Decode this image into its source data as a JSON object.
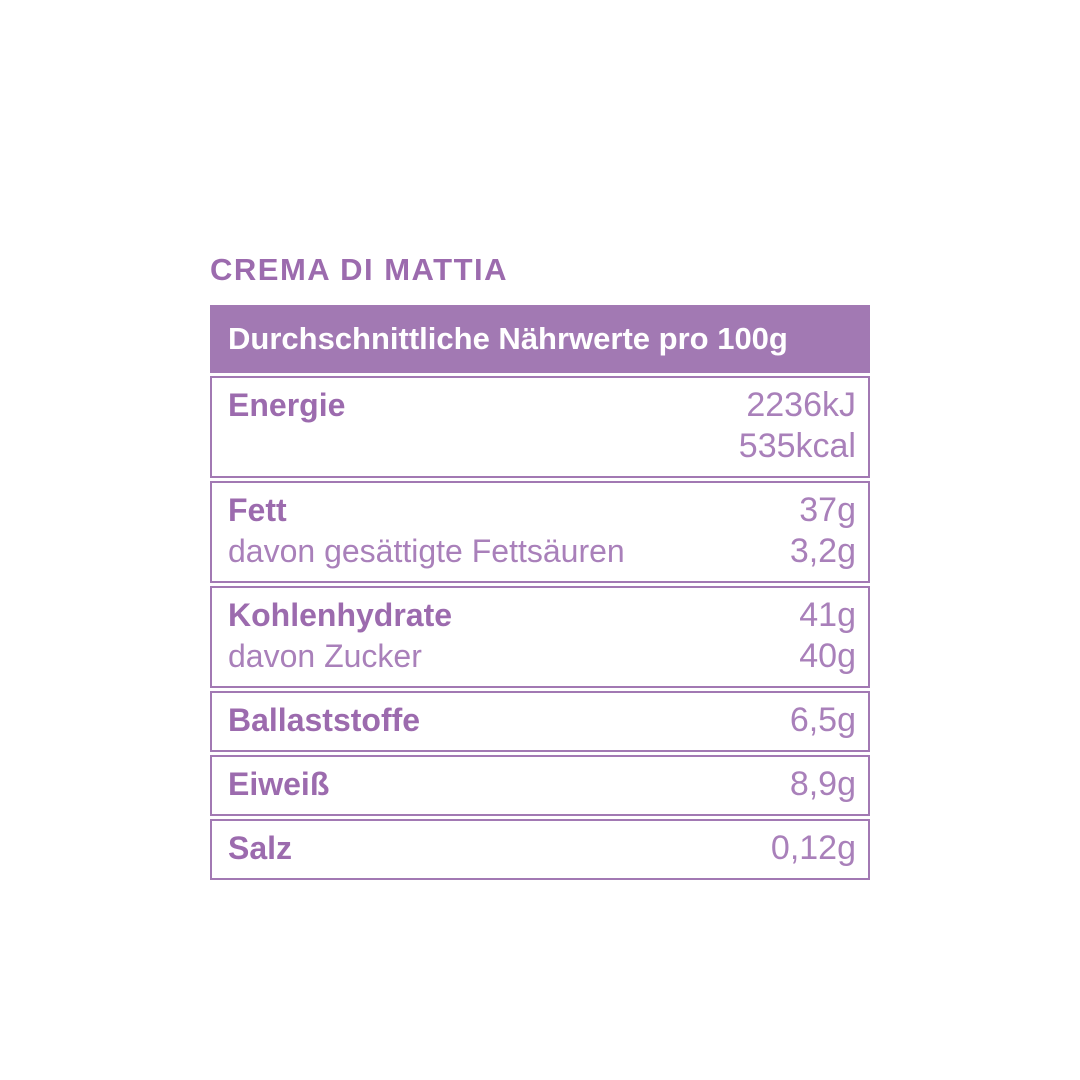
{
  "colors": {
    "accent_purple": "#a279b3",
    "text_bold_purple": "#9c6bae",
    "text_light_purple": "#a980ba",
    "header_text": "#ffffff",
    "background": "#ffffff"
  },
  "title": "CREMA DI MATTIA",
  "table": {
    "header": "Durchschnittliche Nährwerte pro 100g",
    "rows": [
      {
        "lines": [
          {
            "label": "Energie",
            "value": "2236kJ"
          },
          {
            "label": "",
            "value": "535kcal"
          }
        ]
      },
      {
        "lines": [
          {
            "label": "Fett",
            "value": "37g"
          },
          {
            "label": "davon gesättigte Fettsäuren",
            "value": "3,2g"
          }
        ]
      },
      {
        "lines": [
          {
            "label": "Kohlenhydrate",
            "value": "41g"
          },
          {
            "label": "davon Zucker",
            "value": "40g"
          }
        ]
      },
      {
        "lines": [
          {
            "label": "Ballaststoffe",
            "value": "6,5g"
          }
        ]
      },
      {
        "lines": [
          {
            "label": "Eiweiß",
            "value": "8,9g"
          }
        ]
      },
      {
        "lines": [
          {
            "label": "Salz",
            "value": "0,12g"
          }
        ]
      }
    ]
  }
}
